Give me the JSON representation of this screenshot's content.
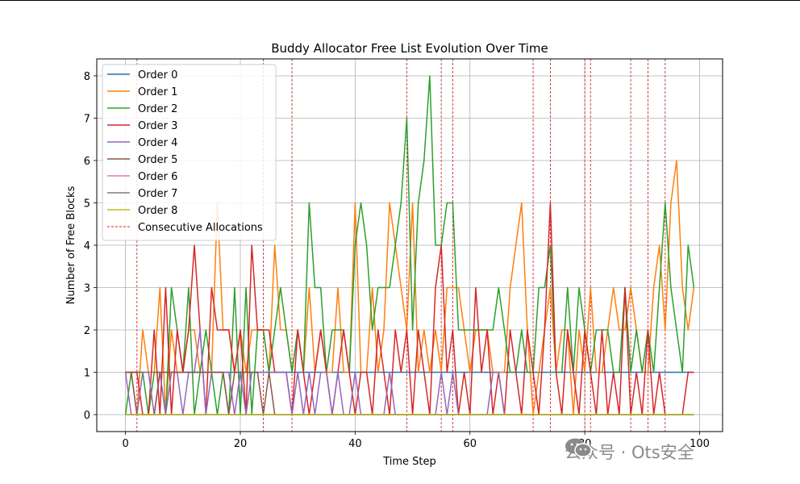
{
  "watermark": {
    "text": "公众号 · Ots安全"
  },
  "chart_data": {
    "type": "line",
    "title": "Buddy Allocator Free List Evolution Over Time",
    "xlabel": "Time Step",
    "ylabel": "Number of Free Blocks",
    "xlim": [
      -5,
      104
    ],
    "ylim": [
      -0.4,
      8.4
    ],
    "xticks": [
      0,
      20,
      40,
      60,
      80,
      100
    ],
    "yticks": [
      0,
      1,
      2,
      3,
      4,
      5,
      6,
      7,
      8
    ],
    "grid": true,
    "legend_position": "top-left",
    "x": [
      0,
      1,
      2,
      3,
      4,
      5,
      6,
      7,
      8,
      9,
      10,
      11,
      12,
      13,
      14,
      15,
      16,
      17,
      18,
      19,
      20,
      21,
      22,
      23,
      24,
      25,
      26,
      27,
      28,
      29,
      30,
      31,
      32,
      33,
      34,
      35,
      36,
      37,
      38,
      39,
      40,
      41,
      42,
      43,
      44,
      45,
      46,
      47,
      48,
      49,
      50,
      51,
      52,
      53,
      54,
      55,
      56,
      57,
      58,
      59,
      60,
      61,
      62,
      63,
      64,
      65,
      66,
      67,
      68,
      69,
      70,
      71,
      72,
      73,
      74,
      75,
      76,
      77,
      78,
      79,
      80,
      81,
      82,
      83,
      84,
      85,
      86,
      87,
      88,
      89,
      90,
      91,
      92,
      93,
      94,
      95,
      96,
      97,
      98,
      99
    ],
    "series": [
      {
        "name": "Order 0",
        "color": "#1f77b4",
        "values": [
          1,
          1,
          1,
          1,
          1,
          1,
          1,
          1,
          1,
          1,
          1,
          1,
          1,
          1,
          1,
          1,
          1,
          1,
          1,
          1,
          1,
          1,
          1,
          1,
          1,
          1,
          1,
          1,
          1,
          1,
          1,
          1,
          1,
          1,
          1,
          1,
          1,
          1,
          1,
          1,
          1,
          1,
          1,
          1,
          1,
          1,
          1,
          1,
          1,
          1,
          1,
          1,
          1,
          1,
          1,
          1,
          1,
          1,
          1,
          1,
          1,
          1,
          1,
          1,
          1,
          1,
          1,
          1,
          1,
          1,
          1,
          1,
          1,
          1,
          1,
          1,
          1,
          1,
          1,
          1,
          1,
          1,
          1,
          1,
          1,
          1,
          1,
          1,
          1,
          1,
          1,
          1,
          1,
          1,
          1,
          1,
          1,
          1,
          1,
          1
        ]
      },
      {
        "name": "Order 1",
        "color": "#ff7f0e",
        "values": [
          1,
          1,
          0,
          2,
          1,
          1,
          3,
          0,
          2,
          1,
          1,
          2,
          2,
          1,
          1,
          1,
          5,
          2,
          2,
          1,
          2,
          1,
          2,
          2,
          2,
          1,
          4,
          2,
          2,
          1,
          2,
          1,
          3,
          1,
          2,
          1,
          1,
          3,
          1,
          1,
          5,
          1,
          1,
          3,
          1,
          2,
          5,
          4,
          3,
          2,
          5,
          1,
          2,
          1,
          2,
          1,
          3,
          3,
          3,
          2,
          1,
          2,
          2,
          2,
          1,
          1,
          1,
          3,
          4,
          5,
          2,
          0,
          1,
          2,
          3,
          1,
          2,
          2,
          0,
          2,
          1,
          3,
          1,
          1,
          2,
          3,
          2,
          2,
          3,
          2,
          1,
          1,
          3,
          4,
          2,
          5,
          6,
          3,
          2,
          3
        ]
      },
      {
        "name": "Order 2",
        "color": "#2ca02c",
        "values": [
          0,
          1,
          1,
          1,
          0,
          1,
          1,
          0,
          3,
          2,
          1,
          3,
          0,
          1,
          2,
          1,
          0,
          1,
          0,
          3,
          0,
          3,
          0,
          2,
          2,
          1,
          2,
          3,
          2,
          1,
          2,
          1,
          5,
          3,
          3,
          1,
          2,
          2,
          2,
          1,
          4,
          5,
          4,
          2,
          3,
          3,
          3,
          4,
          5,
          7,
          2,
          5,
          6,
          8,
          4,
          4,
          5,
          5,
          2,
          2,
          2,
          2,
          2,
          2,
          2,
          3,
          2,
          1,
          1,
          2,
          1,
          1,
          3,
          3,
          4,
          1,
          1,
          3,
          1,
          3,
          2,
          1,
          2,
          2,
          2,
          1,
          1,
          3,
          1,
          2,
          1,
          2,
          1,
          3,
          5,
          3,
          2,
          1,
          4,
          3
        ]
      },
      {
        "name": "Order 3",
        "color": "#d62728",
        "values": [
          1,
          1,
          1,
          0,
          0,
          2,
          0,
          3,
          0,
          2,
          1,
          2,
          4,
          2,
          0,
          3,
          2,
          2,
          2,
          1,
          2,
          0,
          4,
          2,
          2,
          2,
          1,
          1,
          1,
          0,
          2,
          1,
          0,
          1,
          2,
          1,
          0,
          1,
          2,
          1,
          0,
          1,
          1,
          0,
          2,
          1,
          0,
          2,
          1,
          2,
          0,
          2,
          1,
          0,
          3,
          4,
          1,
          2,
          0,
          1,
          0,
          3,
          1,
          2,
          0,
          1,
          0,
          2,
          1,
          0,
          2,
          1,
          0,
          2,
          5,
          1,
          0,
          2,
          1,
          0,
          2,
          1,
          0,
          2,
          0,
          1,
          0,
          3,
          0,
          1,
          0,
          2,
          0,
          1,
          0,
          0,
          0,
          0,
          1,
          1
        ]
      },
      {
        "name": "Order 4",
        "color": "#9467bd",
        "values": [
          1,
          0,
          0,
          1,
          1,
          0,
          1,
          0,
          1,
          1,
          0,
          1,
          1,
          2,
          0,
          1,
          1,
          1,
          1,
          0,
          1,
          0,
          1,
          1,
          1,
          1,
          1,
          1,
          1,
          0,
          1,
          0,
          1,
          0,
          1,
          1,
          0,
          1,
          0,
          0,
          1,
          0,
          0,
          0,
          0,
          0,
          1,
          0,
          0,
          0,
          0,
          0,
          0,
          0,
          0,
          1,
          0,
          1,
          0,
          0,
          0,
          0,
          0,
          0,
          1,
          1,
          0,
          0,
          0,
          0,
          0,
          0,
          0,
          0,
          0,
          0,
          0,
          0,
          0,
          0,
          0,
          0,
          0,
          0,
          0,
          0,
          0,
          0,
          0,
          0,
          0,
          0,
          0,
          0,
          0,
          0,
          0,
          0,
          0,
          0
        ]
      },
      {
        "name": "Order 5",
        "color": "#8c564b",
        "values": [
          1,
          1,
          0,
          0,
          0,
          0,
          1,
          1,
          1,
          1,
          1,
          1,
          1,
          1,
          1,
          1,
          1,
          1,
          0,
          1,
          1,
          1,
          1,
          1,
          0,
          1,
          0,
          0,
          0,
          0,
          0,
          0,
          0,
          0,
          0,
          0,
          0,
          0,
          0,
          0,
          0,
          0,
          0,
          0,
          0,
          0,
          0,
          0,
          0,
          0,
          0,
          0,
          0,
          0,
          0,
          0,
          0,
          0,
          0,
          0,
          0,
          0,
          0,
          0,
          0,
          0,
          0,
          0,
          0,
          0,
          0,
          0,
          0,
          0,
          0,
          0,
          0,
          0,
          0,
          0,
          0,
          0,
          0,
          0,
          0,
          0,
          0,
          0,
          0,
          0,
          0,
          0,
          0,
          0,
          0,
          0,
          0,
          0,
          0,
          0
        ]
      },
      {
        "name": "Order 6",
        "color": "#e377c2",
        "values": [
          0,
          0,
          0,
          0,
          0,
          0,
          0,
          0,
          0,
          0,
          0,
          0,
          0,
          0,
          0,
          0,
          0,
          0,
          0,
          0,
          0,
          0,
          0,
          0,
          0,
          0,
          0,
          0,
          0,
          0,
          0,
          0,
          0,
          0,
          0,
          0,
          0,
          0,
          0,
          0,
          0,
          0,
          0,
          0,
          0,
          0,
          0,
          0,
          0,
          0,
          0,
          0,
          0,
          0,
          0,
          0,
          0,
          0,
          0,
          0,
          0,
          0,
          0,
          0,
          0,
          0,
          0,
          0,
          0,
          0,
          0,
          0,
          0,
          0,
          0,
          0,
          0,
          0,
          0,
          0,
          0,
          0,
          0,
          0,
          0,
          0,
          0,
          0,
          0,
          0,
          0,
          0,
          0,
          0,
          0,
          0,
          0,
          0,
          0,
          0
        ]
      },
      {
        "name": "Order 7",
        "color": "#7f7f7f",
        "values": [
          0,
          0,
          0,
          0,
          0,
          0,
          0,
          0,
          0,
          0,
          0,
          0,
          0,
          0,
          0,
          0,
          0,
          0,
          0,
          0,
          0,
          0,
          0,
          0,
          0,
          0,
          0,
          0,
          0,
          0,
          0,
          0,
          0,
          0,
          0,
          0,
          0,
          0,
          0,
          0,
          0,
          0,
          0,
          0,
          0,
          0,
          0,
          0,
          0,
          0,
          0,
          0,
          0,
          0,
          0,
          0,
          0,
          0,
          0,
          0,
          0,
          0,
          0,
          0,
          0,
          0,
          0,
          0,
          0,
          0,
          0,
          0,
          0,
          0,
          0,
          0,
          0,
          0,
          0,
          0,
          0,
          0,
          0,
          0,
          0,
          0,
          0,
          0,
          0,
          0,
          0,
          0,
          0,
          0,
          0,
          0,
          0,
          0,
          0,
          0
        ]
      },
      {
        "name": "Order 8",
        "color": "#bcbd22",
        "values": [
          0,
          0,
          0,
          0,
          0,
          0,
          0,
          0,
          0,
          0,
          0,
          0,
          0,
          0,
          0,
          0,
          0,
          0,
          0,
          0,
          0,
          0,
          0,
          0,
          0,
          0,
          0,
          0,
          0,
          0,
          0,
          0,
          0,
          0,
          0,
          0,
          0,
          0,
          0,
          0,
          0,
          0,
          0,
          0,
          0,
          0,
          0,
          0,
          0,
          0,
          0,
          0,
          0,
          0,
          0,
          0,
          0,
          0,
          0,
          0,
          0,
          0,
          0,
          0,
          0,
          0,
          0,
          0,
          0,
          0,
          0,
          0,
          0,
          0,
          0,
          0,
          0,
          0,
          0,
          0,
          0,
          0,
          0,
          0,
          0,
          0,
          0,
          0,
          0,
          0,
          0,
          0,
          0,
          0,
          0,
          0,
          0,
          0,
          0,
          0
        ]
      }
    ],
    "vlines": {
      "name": "Consecutive Allocations",
      "color": "#d62728",
      "style": "dashed",
      "x": [
        2,
        24,
        29,
        49,
        55,
        57,
        71,
        74,
        80,
        81,
        88,
        91,
        94
      ]
    }
  }
}
